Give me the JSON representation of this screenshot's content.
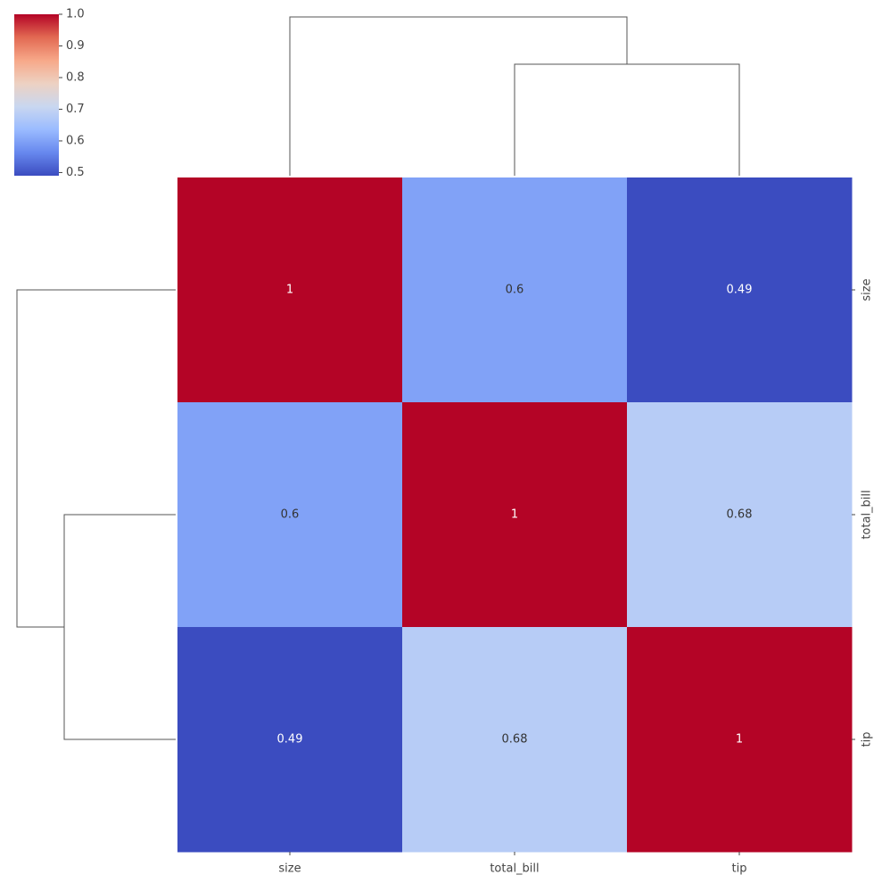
{
  "chart_data": {
    "type": "heatmap",
    "row_labels": [
      "size",
      "total_bill",
      "tip"
    ],
    "col_labels": [
      "size",
      "total_bill",
      "tip"
    ],
    "values": [
      [
        1,
        0.6,
        0.49
      ],
      [
        0.6,
        1,
        0.68
      ],
      [
        0.49,
        0.68,
        1
      ]
    ],
    "colormap": [
      "#3b4cc0",
      "#6788ee",
      "#9abbff",
      "#c9d7f0",
      "#edd1c2",
      "#f7a889",
      "#e26952",
      "#b40426"
    ],
    "clim": [
      0.49,
      1
    ],
    "cticks": [
      0.5,
      0.6,
      0.7,
      0.8,
      0.9,
      {
        "value": 1,
        "label": "1.0"
      }
    ]
  }
}
